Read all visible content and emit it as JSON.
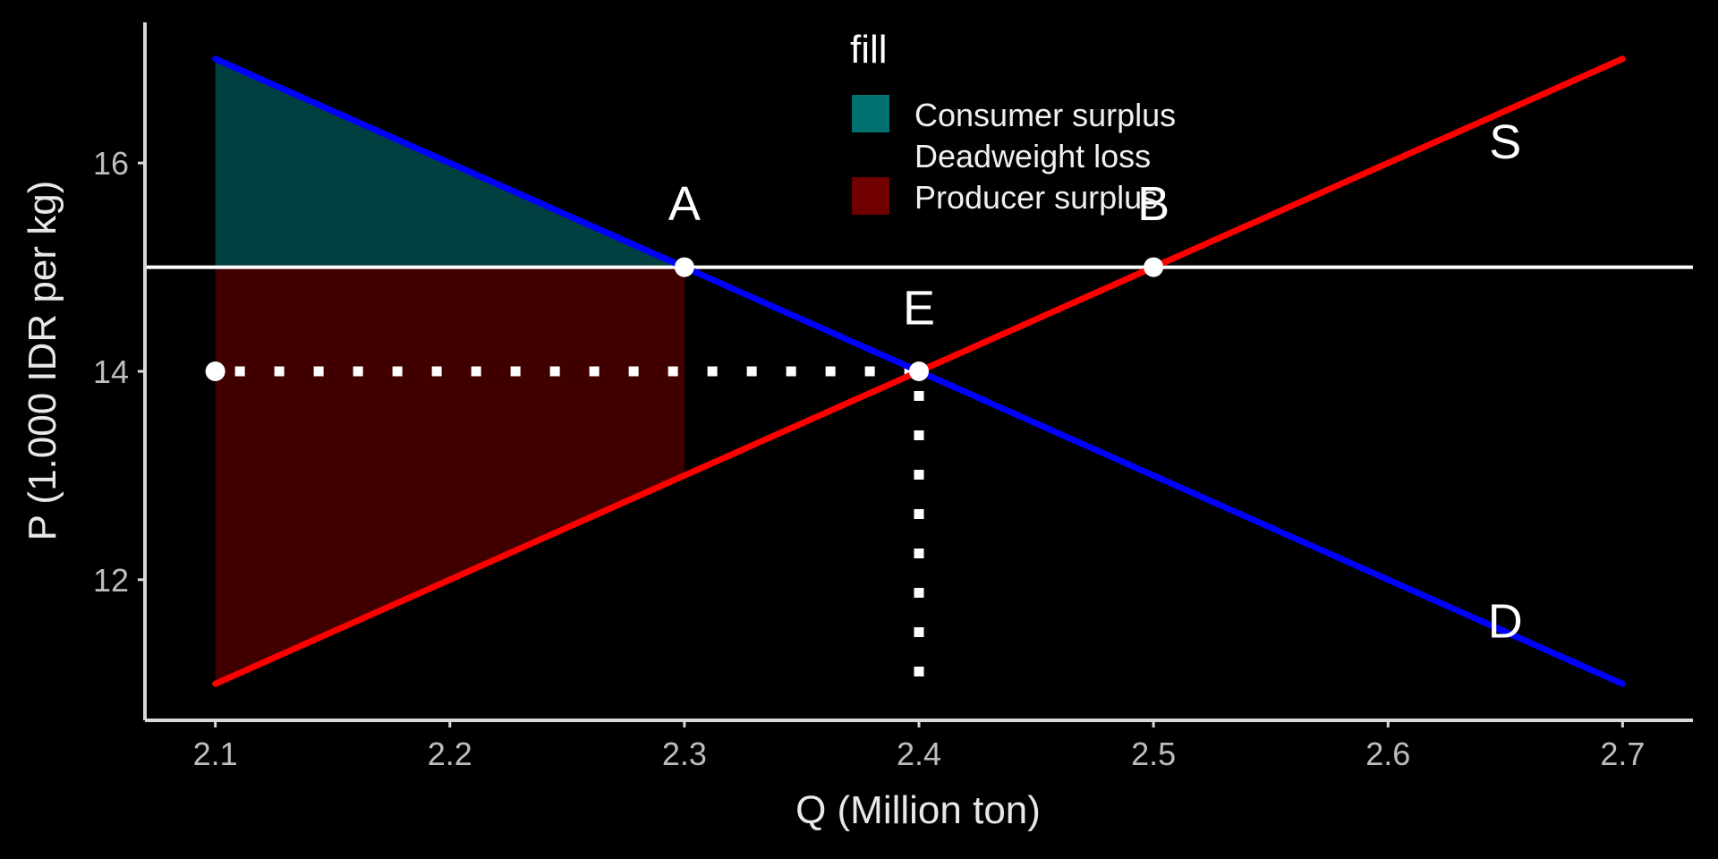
{
  "chart_data": {
    "type": "line",
    "xlabel": "Q (Million ton)",
    "ylabel": "P (1.000 IDR per kg)",
    "xlim": [
      2.07,
      2.73
    ],
    "ylim": [
      10.65,
      17.35
    ],
    "x_ticks": [
      2.1,
      2.2,
      2.3,
      2.4,
      2.5,
      2.6,
      2.7
    ],
    "x_tick_labels": [
      "2.1",
      "2.2",
      "2.3",
      "2.4",
      "2.5",
      "2.6",
      "2.7"
    ],
    "y_ticks": [
      12,
      14,
      16
    ],
    "y_tick_labels": [
      "12",
      "14",
      "16"
    ],
    "series": [
      {
        "name": "D",
        "color": "#0000ff",
        "x": [
          2.1,
          2.7
        ],
        "y": [
          17,
          11
        ]
      },
      {
        "name": "S",
        "color": "#ff0000",
        "x": [
          2.1,
          2.7
        ],
        "y": [
          11,
          17
        ]
      }
    ],
    "areas": [
      {
        "name": "Consumer surplus",
        "color": "#014040",
        "points": [
          [
            2.1,
            17
          ],
          [
            2.3,
            15
          ],
          [
            2.1,
            15
          ]
        ]
      },
      {
        "name": "Producer surplus",
        "color": "#400000",
        "points": [
          [
            2.1,
            15
          ],
          [
            2.3,
            15
          ],
          [
            2.3,
            13
          ],
          [
            2.1,
            11
          ]
        ]
      },
      {
        "name": "Deadweight loss",
        "color": "#000000",
        "points": [
          [
            2.3,
            15
          ],
          [
            2.4,
            14
          ],
          [
            2.3,
            13
          ]
        ]
      }
    ],
    "hline": {
      "y": 15,
      "color": "#ffffff"
    },
    "dotted_lines": [
      {
        "x": [
          2.1,
          2.4
        ],
        "y": [
          14,
          14
        ]
      },
      {
        "x": [
          2.4,
          2.4
        ],
        "y": [
          14,
          11
        ]
      }
    ],
    "points": [
      {
        "label": "A",
        "x": 2.3,
        "y": 15,
        "label_x": 2.3,
        "label_y": 15.45
      },
      {
        "label": "B",
        "x": 2.5,
        "y": 15,
        "label_x": 2.5,
        "label_y": 15.45
      },
      {
        "label": "E",
        "x": 2.4,
        "y": 14,
        "label_x": 2.4,
        "label_y": 14.45
      },
      {
        "label": "",
        "x": 2.1,
        "y": 14,
        "label_x": 2.1,
        "label_y": 14
      }
    ],
    "line_labels": [
      {
        "text": "S",
        "x": 2.65,
        "y": 16.2
      },
      {
        "text": "D",
        "x": 2.65,
        "y": 11.6
      }
    ],
    "legend": {
      "title": "fill",
      "position": "top-center",
      "entries": [
        {
          "label": "Consumer surplus",
          "color": "#007070"
        },
        {
          "label": "Deadweight loss",
          "color": "#000000"
        },
        {
          "label": "Producer surplus",
          "color": "#700000"
        }
      ]
    }
  }
}
